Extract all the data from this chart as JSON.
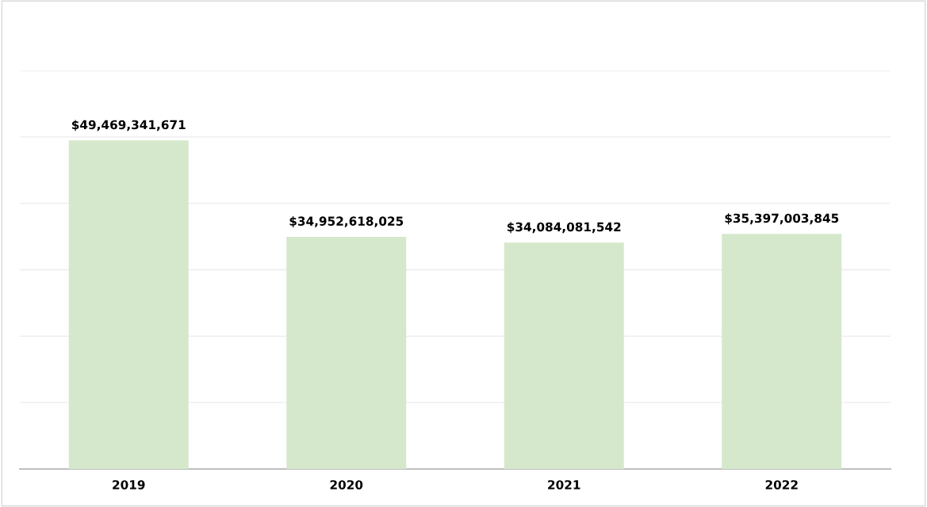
{
  "chart_data": {
    "type": "bar",
    "categories": [
      "2019",
      "2020",
      "2021",
      "2022"
    ],
    "values": [
      49469341671,
      34952618025,
      34084081542,
      35397003845
    ],
    "value_labels": [
      "$49,469,341,671",
      "$34,952,618,025",
      "$34,084,081,542",
      "$35,397,003,845"
    ],
    "color": "#d5e8cb",
    "ylim": [
      0,
      60000000000
    ],
    "yticks": [
      {
        "value": 0,
        "label": null
      },
      {
        "value": 10000000000,
        "label": null
      },
      {
        "value": 20000000000,
        "label": null
      },
      {
        "value": 30000000000,
        "label": null
      },
      {
        "value": 40000000000,
        "label": null
      },
      {
        "value": 50000000000,
        "label": null
      },
      {
        "value": 60000000000,
        "label": null
      }
    ],
    "grid": "y",
    "tick_labels": "x"
  }
}
